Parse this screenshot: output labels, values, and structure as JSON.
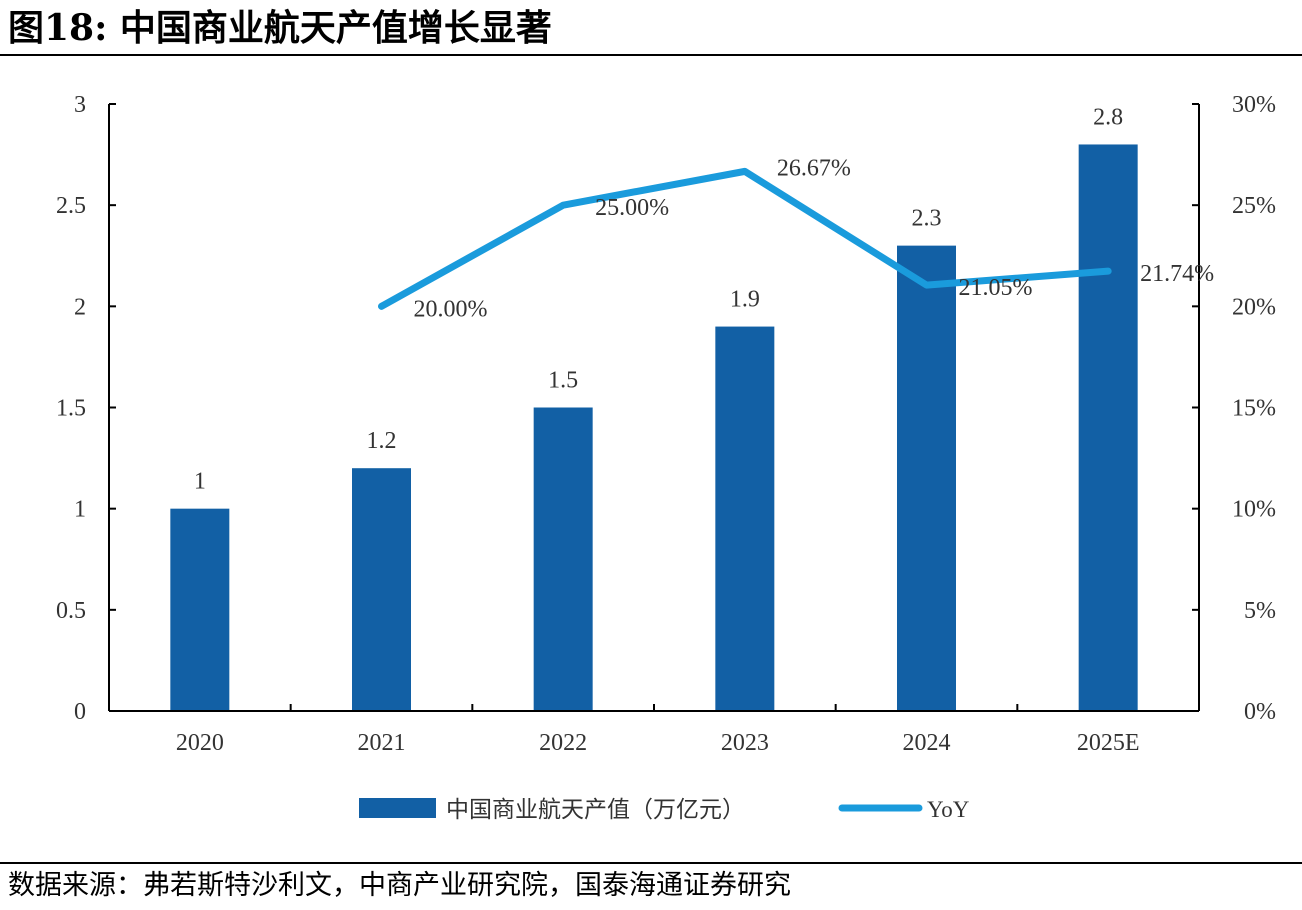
{
  "title": "图18:  中国商业航天产值增长显著",
  "source": "数据来源：弗若斯特沙利文，中商产业研究院，国泰海通证券研究",
  "chart_data": {
    "type": "bar",
    "categories": [
      "2020",
      "2021",
      "2022",
      "2023",
      "2024",
      "2025E"
    ],
    "series": [
      {
        "name": "中国商业航天产值（万亿元）",
        "type": "bar",
        "axis": "left",
        "color": "#1260A5",
        "values": [
          1,
          1.2,
          1.5,
          1.9,
          2.3,
          2.8
        ],
        "labels": [
          "1",
          "1.2",
          "1.5",
          "1.9",
          "2.3",
          "2.8"
        ]
      },
      {
        "name": "YoY",
        "type": "line",
        "axis": "right",
        "color": "#1A9BDC",
        "values": [
          null,
          20.0,
          25.0,
          26.67,
          21.05,
          21.74
        ],
        "labels": [
          "",
          "20.00%",
          "25.00%",
          "26.67%",
          "21.05%",
          "21.74%"
        ]
      }
    ],
    "y_left": {
      "ylim": [
        0,
        3
      ],
      "ticks": [
        "0",
        "0.5",
        "1",
        "1.5",
        "2",
        "2.5",
        "3"
      ]
    },
    "y_right": {
      "ylim": [
        0,
        30
      ],
      "ticks": [
        "0%",
        "5%",
        "10%",
        "15%",
        "20%",
        "25%",
        "30%"
      ]
    },
    "legend": "bottom",
    "grid": false
  }
}
